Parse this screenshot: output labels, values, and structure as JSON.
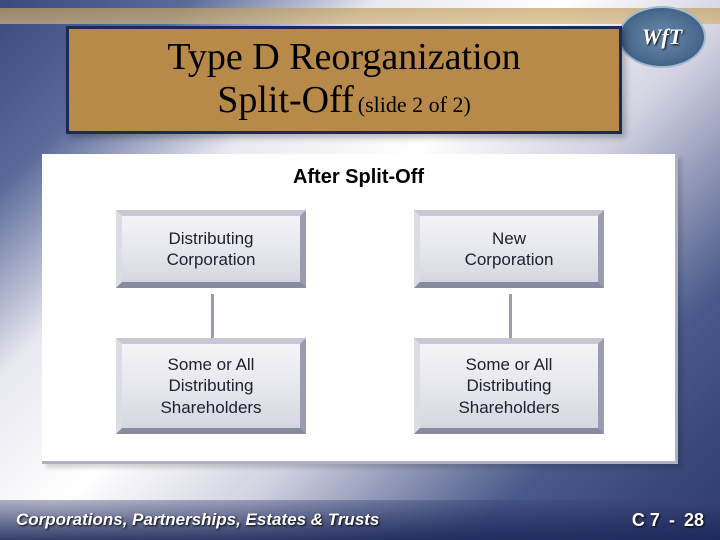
{
  "logo": {
    "text": "WfT"
  },
  "title": {
    "line1": "Type D Reorganization",
    "line2": "Split-Off",
    "sub": "(slide 2 of 2)",
    "box_bg": "#b88a4a",
    "box_border": "#1a2a5a"
  },
  "diagram": {
    "type": "flowchart",
    "heading": "After Split-Off",
    "background_color": "#ffffff",
    "node_style": {
      "fill_gradient": [
        "#f4f4f8",
        "#e4e4ec",
        "#d6d6e0"
      ],
      "bevel_light": "#dcdce4",
      "bevel_dark": "#888aa0",
      "font_family": "Arial",
      "font_size_pt": 13,
      "text_color": "#202030"
    },
    "nodes": [
      {
        "id": "dist-corp",
        "label": "Distributing\nCorporation",
        "row": 0,
        "col": 0
      },
      {
        "id": "new-corp",
        "label": "New\nCorporation",
        "row": 0,
        "col": 1
      },
      {
        "id": "sh-left",
        "label": "Some or All\nDistributing\nShareholders",
        "row": 1,
        "col": 0
      },
      {
        "id": "sh-right",
        "label": "Some or All\nDistributing\nShareholders",
        "row": 1,
        "col": 1
      }
    ],
    "edges": [
      {
        "from": "dist-corp",
        "to": "sh-left"
      },
      {
        "from": "new-corp",
        "to": "sh-right"
      }
    ],
    "connector_color": "#9a9ab0"
  },
  "footer": {
    "left": "Corporations, Partnerships, Estates & Trusts",
    "chapter": "C 7",
    "dash": "-",
    "page": "28",
    "text_color": "#ffffff"
  },
  "labels": {
    "dist_corp": "Distributing Corporation",
    "new_corp": "New Corporation",
    "sh_left": "Some or All Distributing Shareholders",
    "sh_right": "Some or All Distributing Shareholders"
  }
}
